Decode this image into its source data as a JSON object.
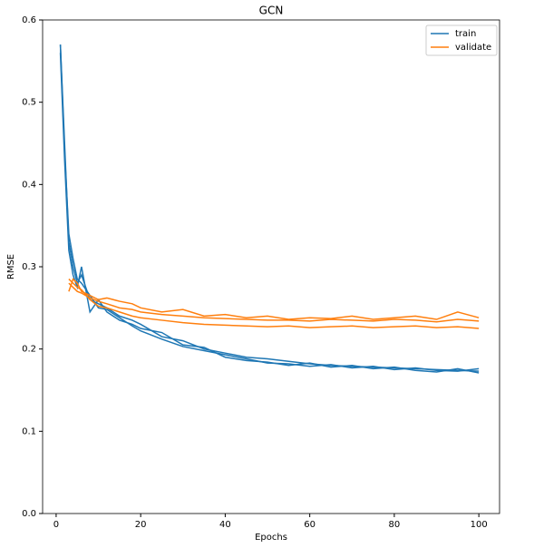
{
  "chart_data": {
    "type": "line",
    "title": "GCN",
    "xlabel": "Epochs",
    "ylabel": "RMSE",
    "x": [
      1,
      2,
      3,
      4,
      5,
      6,
      8,
      10,
      12,
      15,
      18,
      20,
      25,
      30,
      35,
      40,
      45,
      50,
      55,
      60,
      65,
      70,
      75,
      80,
      85,
      90,
      95,
      100
    ],
    "xlim": [
      -3.2,
      104.9
    ],
    "xticks": [
      0,
      20,
      40,
      60,
      80,
      100
    ],
    "ylim": [
      0,
      0.6
    ],
    "yticks": [
      {
        "value": 0,
        "label": "0.0"
      },
      0.1,
      0.2,
      0.3,
      0.4,
      0.5,
      0.6
    ],
    "legend": "upper right",
    "series": [
      {
        "name": "train",
        "color": "#1f77b4",
        "runs": [
          [
            0.57,
            0.45,
            0.33,
            0.3,
            0.28,
            0.29,
            0.26,
            0.255,
            0.25,
            0.24,
            0.235,
            0.23,
            0.215,
            0.21,
            0.2,
            0.195,
            0.19,
            0.188,
            0.185,
            0.182,
            0.18,
            0.179,
            0.178,
            0.177,
            0.176,
            0.175,
            0.174,
            0.173
          ],
          [
            0.56,
            0.43,
            0.32,
            0.29,
            0.275,
            0.3,
            0.245,
            0.26,
            0.245,
            0.235,
            0.23,
            0.225,
            0.22,
            0.205,
            0.202,
            0.19,
            0.186,
            0.184,
            0.18,
            0.183,
            0.178,
            0.18,
            0.176,
            0.178,
            0.174,
            0.172,
            0.176,
            0.171
          ],
          [
            0.57,
            0.44,
            0.34,
            0.31,
            0.285,
            0.28,
            0.265,
            0.25,
            0.248,
            0.238,
            0.228,
            0.222,
            0.212,
            0.203,
            0.198,
            0.193,
            0.188,
            0.183,
            0.182,
            0.179,
            0.181,
            0.177,
            0.179,
            0.175,
            0.177,
            0.174,
            0.173,
            0.176
          ]
        ]
      },
      {
        "name": "validate",
        "color": "#ff7f0e",
        "runs": [
          [
            null,
            null,
            0.28,
            0.275,
            0.27,
            0.268,
            0.262,
            0.258,
            0.255,
            0.25,
            0.248,
            0.245,
            0.242,
            0.24,
            0.238,
            0.237,
            0.236,
            0.235,
            0.235,
            0.234,
            0.236,
            0.235,
            0.234,
            0.236,
            0.235,
            0.233,
            0.236,
            0.234
          ],
          [
            null,
            null,
            0.27,
            0.285,
            0.28,
            0.27,
            0.265,
            0.26,
            0.262,
            0.258,
            0.255,
            0.25,
            0.245,
            0.248,
            0.24,
            0.242,
            0.238,
            0.24,
            0.236,
            0.238,
            0.237,
            0.24,
            0.236,
            0.238,
            0.24,
            0.236,
            0.245,
            0.238
          ],
          [
            null,
            null,
            0.285,
            0.28,
            0.275,
            0.272,
            0.26,
            0.252,
            0.25,
            0.245,
            0.24,
            0.238,
            0.235,
            0.232,
            0.23,
            0.229,
            0.228,
            0.227,
            0.228,
            0.226,
            0.227,
            0.228,
            0.226,
            0.227,
            0.228,
            0.226,
            0.227,
            0.225
          ]
        ]
      }
    ]
  }
}
